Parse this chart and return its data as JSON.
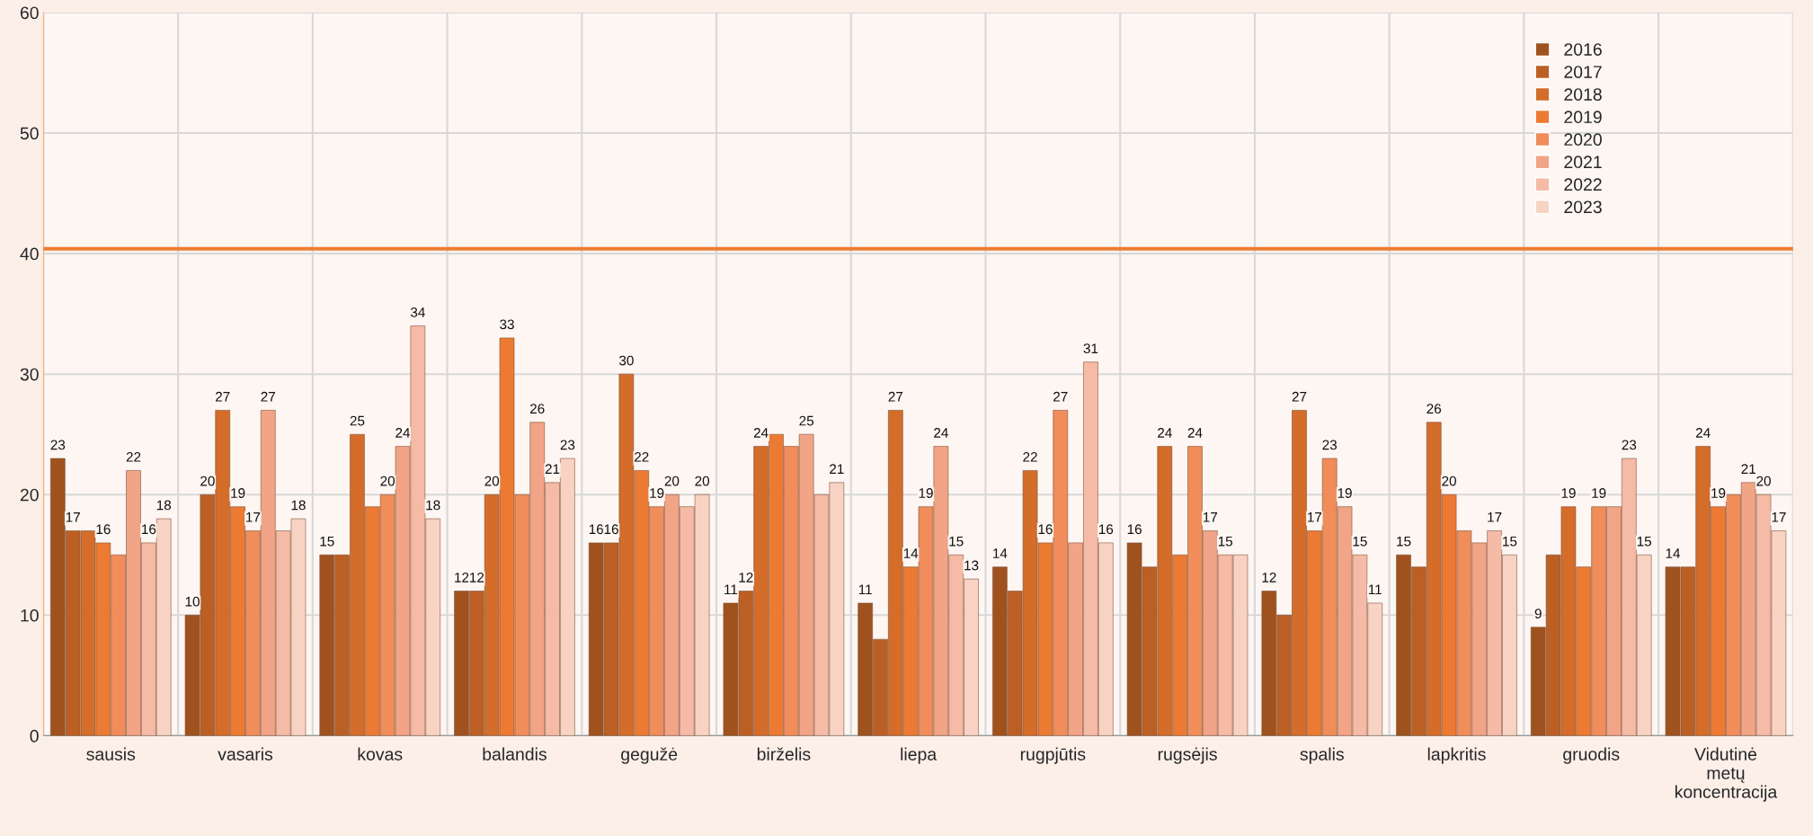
{
  "chart_data": {
    "type": "bar",
    "categories": [
      "sausis",
      "vasaris",
      "kovas",
      "balandis",
      "gegužė",
      "birželis",
      "liepa",
      "rugpjūtis",
      "rugsėjis",
      "spalis",
      "lapkritis",
      "gruodis",
      "Vidutinė\nmetų\nkoncentracija"
    ],
    "series": [
      {
        "name": "2016",
        "color": "#a0521e",
        "values": [
          23,
          10,
          15,
          12,
          16,
          11,
          11,
          14,
          16,
          12,
          15,
          9,
          14
        ],
        "value_labels": [
          "23",
          "10",
          "15",
          "12",
          "16",
          "11",
          "11",
          "14",
          "16",
          "12",
          "15",
          "9",
          "14"
        ]
      },
      {
        "name": "2017",
        "color": "#bb5f24",
        "values": [
          17,
          20,
          15,
          12,
          16,
          12,
          8,
          12,
          14,
          10,
          14,
          15,
          14
        ],
        "value_labels": [
          "17",
          "20",
          null,
          "12",
          "16",
          "12",
          null,
          null,
          null,
          null,
          null,
          null,
          null
        ]
      },
      {
        "name": "2018",
        "color": "#d46c2a",
        "values": [
          17,
          27,
          25,
          20,
          30,
          24,
          27,
          22,
          24,
          27,
          26,
          19,
          24
        ],
        "value_labels": [
          null,
          "27",
          "25",
          "20",
          "30",
          "24",
          "27",
          "22",
          "24",
          "27",
          "26",
          "19",
          "24"
        ]
      },
      {
        "name": "2019",
        "color": "#ec7a32",
        "values": [
          16,
          19,
          19,
          33,
          22,
          25,
          14,
          16,
          15,
          17,
          20,
          14,
          19
        ],
        "value_labels": [
          "16",
          "19",
          null,
          "33",
          "22",
          null,
          "14",
          "16",
          null,
          "17",
          "20",
          null,
          "19"
        ]
      },
      {
        "name": "2020",
        "color": "#f08d5a",
        "values": [
          15,
          17,
          20,
          20,
          19,
          24,
          19,
          27,
          24,
          23,
          17,
          19,
          20
        ],
        "value_labels": [
          null,
          "17",
          "20",
          null,
          "19",
          null,
          "19",
          "27",
          "24",
          "23",
          null,
          "19",
          null
        ]
      },
      {
        "name": "2021",
        "color": "#f2a487",
        "values": [
          22,
          27,
          24,
          26,
          20,
          25,
          24,
          16,
          17,
          19,
          16,
          19,
          21
        ],
        "value_labels": [
          "22",
          "27",
          "24",
          "26",
          "20",
          "25",
          "24",
          null,
          "17",
          "19",
          null,
          null,
          "21"
        ]
      },
      {
        "name": "2022",
        "color": "#f5bba6",
        "values": [
          16,
          17,
          34,
          21,
          19,
          20,
          15,
          31,
          15,
          15,
          17,
          23,
          20
        ],
        "value_labels": [
          "16",
          null,
          "34",
          "21",
          null,
          null,
          "15",
          "31",
          "15",
          "15",
          "17",
          "23",
          "20"
        ]
      },
      {
        "name": "2023",
        "color": "#f8d3c4",
        "values": [
          18,
          18,
          18,
          23,
          20,
          21,
          13,
          16,
          15,
          11,
          15,
          15,
          17
        ],
        "value_labels": [
          "18",
          "18",
          "18",
          "23",
          "20",
          "21",
          "13",
          "16",
          null,
          "11",
          "15",
          "15",
          "17"
        ]
      }
    ],
    "ylim": [
      0,
      60
    ],
    "yticks": [
      0,
      10,
      20,
      30,
      40,
      50,
      60
    ],
    "ref_lines": [
      {
        "axis": "y",
        "value": 40.4,
        "color": "#ed7d31",
        "line_style": "solid"
      }
    ],
    "grid": "y",
    "legend": "top right"
  }
}
